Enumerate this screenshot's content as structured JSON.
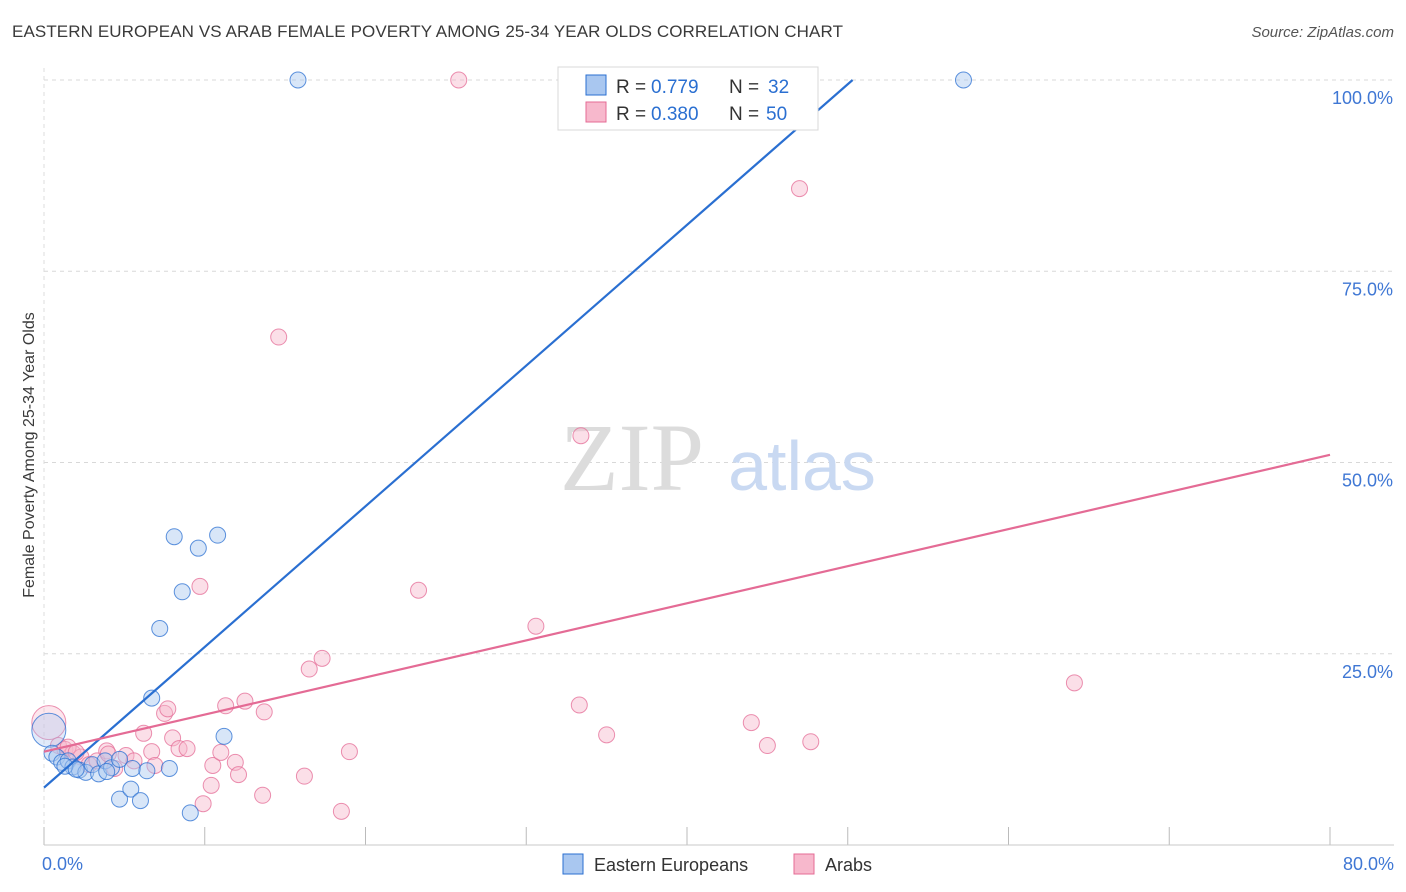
{
  "header": {
    "title": "EASTERN EUROPEAN VS ARAB FEMALE POVERTY AMONG 25-34 YEAR OLDS CORRELATION CHART",
    "source": "Source: ZipAtlas.com"
  },
  "watermark": {
    "zip": "ZIP",
    "atlas": "atlas"
  },
  "colors": {
    "blue": "#2a6fd1",
    "blue_fill": "#a9c7f0",
    "pink": "#e46b95",
    "pink_fill": "#f7b8cc",
    "axis_text": "#3f77d4",
    "grid": "#d8d8d8"
  },
  "chart_data": {
    "type": "scatter",
    "title": "EASTERN EUROPEAN VS ARAB FEMALE POVERTY AMONG 25-34 YEAR OLDS CORRELATION CHART",
    "xlabel": "",
    "ylabel": "Female Poverty Among 25-34 Year Olds",
    "xlim": [
      0,
      80
    ],
    "ylim": [
      0,
      100
    ],
    "x_tick_labels": [
      {
        "value": 0,
        "label": "0.0%"
      },
      {
        "value": 80,
        "label": "80.0%"
      }
    ],
    "y_tick_labels": [
      {
        "value": 25,
        "label": "25.0%"
      },
      {
        "value": 50,
        "label": "50.0%"
      },
      {
        "value": 75,
        "label": "75.0%"
      },
      {
        "value": 100,
        "label": "100.0%"
      }
    ],
    "legend_stats": [
      {
        "series": "Eastern Europeans",
        "r_label": "R =",
        "r_value": "0.779",
        "n_label": "N =",
        "n_value": "32"
      },
      {
        "series": "Arabs",
        "r_label": "R =",
        "r_value": "0.380",
        "n_label": "N =",
        "n_value": "50"
      }
    ],
    "series": [
      {
        "name": "Eastern Europeans",
        "color": "#2a6fd1",
        "trend": {
          "x": [
            0,
            50.3
          ],
          "y": [
            7.5,
            100
          ]
        },
        "points": [
          {
            "x": 0.3,
            "y": 15.0,
            "big": true
          },
          {
            "x": 0.5,
            "y": 12.0
          },
          {
            "x": 0.8,
            "y": 11.5
          },
          {
            "x": 1.1,
            "y": 10.8
          },
          {
            "x": 1.5,
            "y": 11.0
          },
          {
            "x": 1.8,
            "y": 10.2
          },
          {
            "x": 2.2,
            "y": 9.8
          },
          {
            "x": 2.6,
            "y": 9.5
          },
          {
            "x": 3.0,
            "y": 10.5
          },
          {
            "x": 3.4,
            "y": 9.3
          },
          {
            "x": 3.8,
            "y": 11.0
          },
          {
            "x": 4.2,
            "y": 10.1
          },
          {
            "x": 4.7,
            "y": 11.2
          },
          {
            "x": 5.5,
            "y": 10.0
          },
          {
            "x": 6.4,
            "y": 9.7
          },
          {
            "x": 7.8,
            "y": 10.0
          },
          {
            "x": 4.7,
            "y": 6.0
          },
          {
            "x": 5.4,
            "y": 7.3
          },
          {
            "x": 6.0,
            "y": 5.8
          },
          {
            "x": 9.1,
            "y": 4.2
          },
          {
            "x": 6.7,
            "y": 19.2
          },
          {
            "x": 7.2,
            "y": 28.3
          },
          {
            "x": 8.6,
            "y": 33.1
          },
          {
            "x": 8.1,
            "y": 40.3
          },
          {
            "x": 9.6,
            "y": 38.8
          },
          {
            "x": 10.8,
            "y": 40.5
          },
          {
            "x": 11.2,
            "y": 14.2
          },
          {
            "x": 15.8,
            "y": 100.0
          },
          {
            "x": 57.2,
            "y": 100.0
          },
          {
            "x": 1.3,
            "y": 10.3
          },
          {
            "x": 2.0,
            "y": 9.9
          },
          {
            "x": 3.9,
            "y": 9.6
          }
        ]
      },
      {
        "name": "Arabs",
        "color": "#e46b95",
        "trend": {
          "x": [
            0,
            80
          ],
          "y": [
            12.2,
            51.0
          ]
        },
        "points": [
          {
            "x": 0.3,
            "y": 16.0,
            "big": true
          },
          {
            "x": 0.9,
            "y": 13.0
          },
          {
            "x": 1.3,
            "y": 12.5
          },
          {
            "x": 1.8,
            "y": 12.0
          },
          {
            "x": 2.3,
            "y": 11.5
          },
          {
            "x": 2.8,
            "y": 10.5
          },
          {
            "x": 3.3,
            "y": 11.0
          },
          {
            "x": 3.9,
            "y": 12.3
          },
          {
            "x": 4.4,
            "y": 10.0
          },
          {
            "x": 5.1,
            "y": 11.7
          },
          {
            "x": 5.6,
            "y": 11.0
          },
          {
            "x": 6.2,
            "y": 14.6
          },
          {
            "x": 6.7,
            "y": 12.2
          },
          {
            "x": 6.9,
            "y": 10.4
          },
          {
            "x": 7.5,
            "y": 17.2
          },
          {
            "x": 7.7,
            "y": 17.8
          },
          {
            "x": 8.0,
            "y": 14.0
          },
          {
            "x": 8.4,
            "y": 12.6
          },
          {
            "x": 8.9,
            "y": 12.6
          },
          {
            "x": 9.7,
            "y": 33.8
          },
          {
            "x": 9.9,
            "y": 5.4
          },
          {
            "x": 10.4,
            "y": 7.8
          },
          {
            "x": 10.5,
            "y": 10.4
          },
          {
            "x": 11.0,
            "y": 12.1
          },
          {
            "x": 11.3,
            "y": 18.2
          },
          {
            "x": 11.9,
            "y": 10.8
          },
          {
            "x": 12.1,
            "y": 9.2
          },
          {
            "x": 12.5,
            "y": 18.8
          },
          {
            "x": 13.7,
            "y": 17.4
          },
          {
            "x": 13.6,
            "y": 6.5
          },
          {
            "x": 14.6,
            "y": 66.4
          },
          {
            "x": 16.2,
            "y": 9.0
          },
          {
            "x": 16.5,
            "y": 23.0
          },
          {
            "x": 17.3,
            "y": 24.4
          },
          {
            "x": 18.5,
            "y": 4.4
          },
          {
            "x": 19.0,
            "y": 12.2
          },
          {
            "x": 23.3,
            "y": 33.3
          },
          {
            "x": 25.8,
            "y": 100.0
          },
          {
            "x": 30.6,
            "y": 28.6
          },
          {
            "x": 33.3,
            "y": 18.3
          },
          {
            "x": 33.4,
            "y": 53.5
          },
          {
            "x": 35.0,
            "y": 14.4
          },
          {
            "x": 44.0,
            "y": 16.0
          },
          {
            "x": 45.0,
            "y": 13.0
          },
          {
            "x": 47.0,
            "y": 85.8
          },
          {
            "x": 47.7,
            "y": 13.5
          },
          {
            "x": 64.1,
            "y": 21.2
          },
          {
            "x": 1.5,
            "y": 12.8
          },
          {
            "x": 2.0,
            "y": 12.1
          },
          {
            "x": 4.0,
            "y": 11.9
          }
        ]
      }
    ]
  }
}
